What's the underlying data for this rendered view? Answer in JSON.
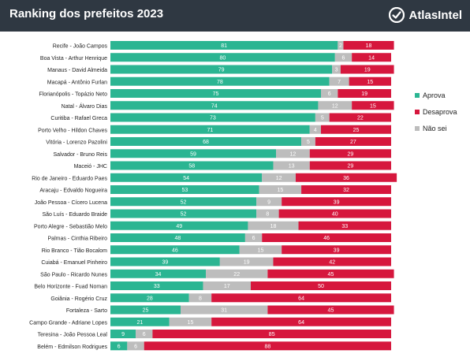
{
  "header": {
    "title": "Ranking dos prefeitos 2023",
    "brand": "AtlasIntel"
  },
  "colors": {
    "header_bg": "#2f3842",
    "aprova": "#2bb592",
    "desaprova": "#d6173d",
    "nao_sei": "#bdbdbd",
    "logo_icon": "#ffffff"
  },
  "chart_data": {
    "type": "bar",
    "orientation": "horizontal",
    "stacked": true,
    "title": "Ranking dos prefeitos 2023",
    "xlim": [
      0,
      100
    ],
    "legend_position": "right",
    "categories": [
      "Recife - João Campos",
      "Boa Vista - Arthur Henrique",
      "Manaus - David Almeida",
      "Macapá - Antônio Furlan",
      "Florianópolis - Topázio Neto",
      "Natal - Álvaro Dias",
      "Curitiba - Rafael Greca",
      "Porto Velho - Hildon Chaves",
      "Vitória - Lorenzo Pazolini",
      "Salvador - Bruno Reis",
      "Maceió - JHC",
      "Rio de Janeiro - Eduardo Paes",
      "Aracaju - Edvaldo Nogueira",
      "João Pessoa - Cícero Lucena",
      "São Luís - Eduardo Braide",
      "Porto Alegre - Sebastião Melo",
      "Palmas - Cinthia Ribeiro",
      "Rio Branco - Tião Bocalom",
      "Cuiabá - Emanuel Pinheiro",
      "São Paulo - Ricardo Nunes",
      "Belo Horizonte - Fuad Noman",
      "Goiânia - Rogério Cruz",
      "Fortaleza - Sarto",
      "Campo Grande - Adriane Lopes",
      "Teresina - João Pessoa Leal",
      "Belém - Edmilson Rodrigues"
    ],
    "series": [
      {
        "name": "Aprova",
        "color": "#2bb592",
        "values": [
          81,
          80,
          79,
          78,
          75,
          74,
          73,
          71,
          68,
          59,
          58,
          54,
          53,
          52,
          52,
          49,
          48,
          46,
          39,
          34,
          33,
          28,
          25,
          21,
          9,
          6
        ]
      },
      {
        "name": "Não sei",
        "color": "#bdbdbd",
        "values": [
          2,
          6,
          3,
          7,
          6,
          12,
          5,
          4,
          5,
          12,
          13,
          12,
          15,
          9,
          8,
          18,
          6,
          15,
          19,
          22,
          17,
          8,
          31,
          15,
          6,
          6
        ]
      },
      {
        "name": "Desaprova",
        "color": "#d6173d",
        "values": [
          18,
          14,
          19,
          15,
          19,
          15,
          22,
          25,
          27,
          29,
          29,
          36,
          32,
          39,
          40,
          33,
          46,
          39,
          42,
          45,
          50,
          64,
          45,
          64,
          85,
          88
        ]
      }
    ],
    "legend": [
      "Aprova",
      "Desaprova",
      "Não sei"
    ]
  }
}
